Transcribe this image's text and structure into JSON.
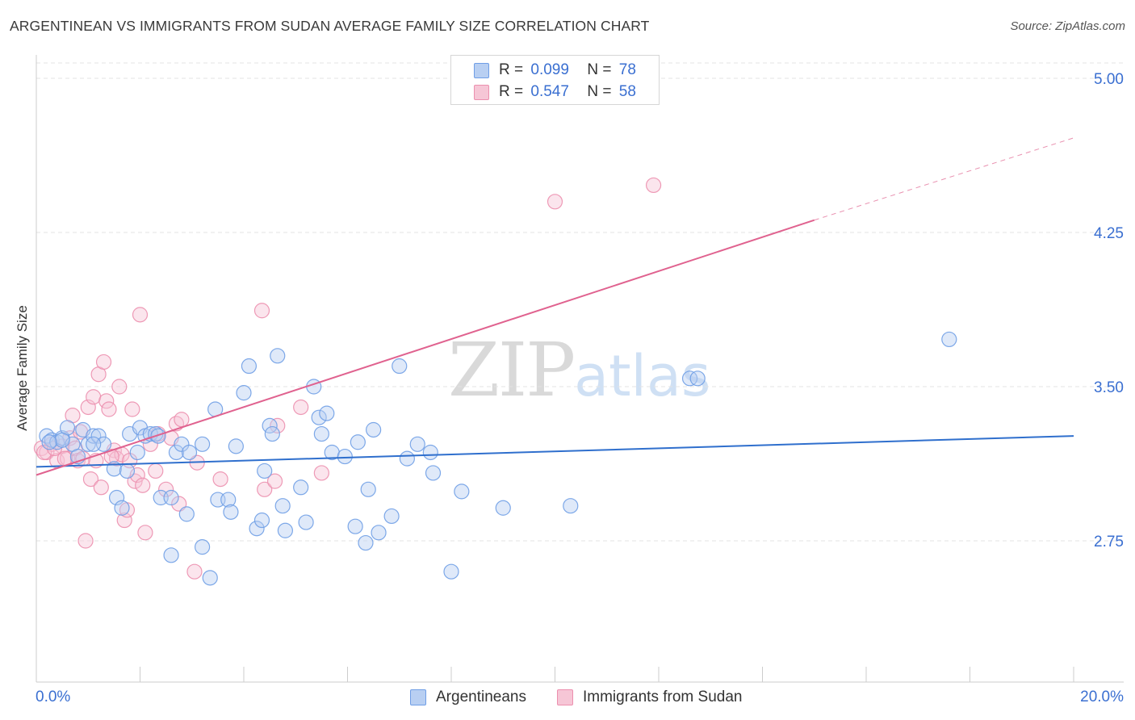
{
  "header": {
    "title": "ARGENTINEAN VS IMMIGRANTS FROM SUDAN AVERAGE FAMILY SIZE CORRELATION CHART",
    "source": "Source: ZipAtlas.com"
  },
  "watermark": {
    "zip": "ZIP",
    "atlas": "atlas"
  },
  "legend": {
    "rows": [
      {
        "r_label": "R =",
        "r_value": "0.099",
        "n_label": "N =",
        "n_value": "78"
      },
      {
        "r_label": "R =",
        "r_value": "0.547",
        "n_label": "N =",
        "n_value": "58"
      }
    ]
  },
  "colors": {
    "argentineans": "#6f9ee6",
    "argentineans_fill": "#b8cff2",
    "sudan": "#ec8fae",
    "sudan_fill": "#f6c6d6",
    "blue_line": "#2f6fcd",
    "pink_line": "#e0628f",
    "tick_label": "#3a6fd1"
  },
  "chart_data": {
    "type": "scatter",
    "title": "ARGENTINEAN VS IMMIGRANTS FROM SUDAN AVERAGE FAMILY SIZE CORRELATION CHART",
    "xlabel": "",
    "ylabel": "Average Family Size",
    "xlim": [
      0,
      20
    ],
    "ylim": [
      2.0,
      5.1
    ],
    "x_tick_labels": [
      "0.0%",
      "20.0%"
    ],
    "y_ticks": [
      2.75,
      3.5,
      4.25,
      5.0
    ],
    "y_tick_labels": [
      "2.75",
      "3.50",
      "4.25",
      "5.00"
    ],
    "grid": "horizontal dashed",
    "legend_position": "bottom-center",
    "series": [
      {
        "name": "Argentineans",
        "r": 0.099,
        "n": 78,
        "trend": {
          "x": [
            0,
            20
          ],
          "y": [
            3.11,
            3.26
          ]
        },
        "points": [
          [
            0.2,
            3.26
          ],
          [
            0.3,
            3.24
          ],
          [
            0.4,
            3.23
          ],
          [
            0.5,
            3.25
          ],
          [
            0.6,
            3.3
          ],
          [
            0.7,
            3.22
          ],
          [
            0.8,
            3.16
          ],
          [
            0.9,
            3.29
          ],
          [
            1.0,
            3.22
          ],
          [
            1.1,
            3.26
          ],
          [
            1.2,
            3.26
          ],
          [
            1.3,
            3.22
          ],
          [
            1.5,
            3.1
          ],
          [
            1.55,
            2.96
          ],
          [
            1.65,
            2.91
          ],
          [
            1.8,
            3.27
          ],
          [
            1.75,
            3.09
          ],
          [
            1.95,
            3.18
          ],
          [
            2.0,
            3.3
          ],
          [
            2.1,
            3.26
          ],
          [
            2.2,
            3.27
          ],
          [
            2.3,
            3.27
          ],
          [
            2.4,
            2.96
          ],
          [
            2.6,
            2.96
          ],
          [
            2.7,
            3.18
          ],
          [
            2.8,
            3.22
          ],
          [
            2.95,
            3.18
          ],
          [
            2.9,
            2.88
          ],
          [
            2.6,
            2.68
          ],
          [
            3.2,
            3.22
          ],
          [
            3.2,
            2.72
          ],
          [
            3.35,
            2.57
          ],
          [
            3.45,
            3.39
          ],
          [
            3.5,
            2.95
          ],
          [
            3.7,
            2.95
          ],
          [
            3.75,
            2.89
          ],
          [
            3.85,
            3.21
          ],
          [
            4.0,
            3.47
          ],
          [
            4.1,
            3.6
          ],
          [
            4.25,
            2.81
          ],
          [
            4.35,
            2.85
          ],
          [
            4.4,
            3.09
          ],
          [
            4.5,
            3.31
          ],
          [
            4.55,
            3.27
          ],
          [
            4.65,
            3.65
          ],
          [
            4.75,
            2.92
          ],
          [
            4.8,
            2.8
          ],
          [
            5.1,
            3.01
          ],
          [
            5.2,
            2.84
          ],
          [
            5.35,
            3.5
          ],
          [
            5.45,
            3.35
          ],
          [
            5.5,
            3.27
          ],
          [
            5.6,
            3.37
          ],
          [
            5.7,
            3.18
          ],
          [
            5.95,
            3.16
          ],
          [
            6.15,
            2.82
          ],
          [
            6.2,
            3.23
          ],
          [
            6.35,
            2.74
          ],
          [
            6.4,
            3.0
          ],
          [
            6.5,
            3.29
          ],
          [
            6.6,
            2.79
          ],
          [
            6.85,
            2.87
          ],
          [
            7.0,
            3.6
          ],
          [
            7.15,
            3.15
          ],
          [
            7.35,
            3.22
          ],
          [
            7.6,
            3.18
          ],
          [
            7.65,
            3.08
          ],
          [
            8.0,
            2.6
          ],
          [
            8.2,
            2.99
          ],
          [
            9.0,
            2.91
          ],
          [
            10.3,
            2.92
          ],
          [
            12.6,
            3.54
          ],
          [
            12.75,
            3.54
          ],
          [
            17.6,
            3.73
          ],
          [
            0.5,
            3.24
          ],
          [
            0.25,
            3.23
          ],
          [
            1.1,
            3.22
          ],
          [
            2.35,
            3.26
          ]
        ]
      },
      {
        "name": "Immigrants from Sudan",
        "r": 0.547,
        "n": 58,
        "trend": {
          "x": [
            0,
            15
          ],
          "y": [
            3.07,
            4.31
          ]
        },
        "trend_dashed": {
          "x": [
            15,
            20
          ],
          "y": [
            4.31,
            4.71
          ]
        },
        "points": [
          [
            0.1,
            3.2
          ],
          [
            0.2,
            3.18
          ],
          [
            0.3,
            3.22
          ],
          [
            0.4,
            3.14
          ],
          [
            0.5,
            3.21
          ],
          [
            0.6,
            3.15
          ],
          [
            0.65,
            3.25
          ],
          [
            0.7,
            3.36
          ],
          [
            0.75,
            3.2
          ],
          [
            0.8,
            3.14
          ],
          [
            0.85,
            3.28
          ],
          [
            0.9,
            3.15
          ],
          [
            0.95,
            2.75
          ],
          [
            1.0,
            3.4
          ],
          [
            1.05,
            3.05
          ],
          [
            1.1,
            3.45
          ],
          [
            1.15,
            3.14
          ],
          [
            1.2,
            3.56
          ],
          [
            1.25,
            3.01
          ],
          [
            1.3,
            3.62
          ],
          [
            1.35,
            3.43
          ],
          [
            1.4,
            3.39
          ],
          [
            1.5,
            3.19
          ],
          [
            1.55,
            3.15
          ],
          [
            1.6,
            3.5
          ],
          [
            1.65,
            3.17
          ],
          [
            1.7,
            2.85
          ],
          [
            1.75,
            2.9
          ],
          [
            1.8,
            3.14
          ],
          [
            1.85,
            3.39
          ],
          [
            1.9,
            3.04
          ],
          [
            1.95,
            3.07
          ],
          [
            2.0,
            3.85
          ],
          [
            2.05,
            3.02
          ],
          [
            2.1,
            2.79
          ],
          [
            2.2,
            3.22
          ],
          [
            2.3,
            3.09
          ],
          [
            2.35,
            3.27
          ],
          [
            2.5,
            3.0
          ],
          [
            2.6,
            3.25
          ],
          [
            2.7,
            3.32
          ],
          [
            2.75,
            2.93
          ],
          [
            2.8,
            3.34
          ],
          [
            3.05,
            2.6
          ],
          [
            3.1,
            3.13
          ],
          [
            3.55,
            3.05
          ],
          [
            4.35,
            3.87
          ],
          [
            4.4,
            3.0
          ],
          [
            4.6,
            3.04
          ],
          [
            4.65,
            3.31
          ],
          [
            5.1,
            3.4
          ],
          [
            5.5,
            3.08
          ],
          [
            10.0,
            4.4
          ],
          [
            11.9,
            4.48
          ],
          [
            0.15,
            3.18
          ],
          [
            0.55,
            3.15
          ],
          [
            1.45,
            3.16
          ],
          [
            0.35,
            3.2
          ]
        ]
      }
    ]
  },
  "bottom_legend": {
    "items": [
      {
        "label": "Argentineans"
      },
      {
        "label": "Immigrants from Sudan"
      }
    ]
  }
}
